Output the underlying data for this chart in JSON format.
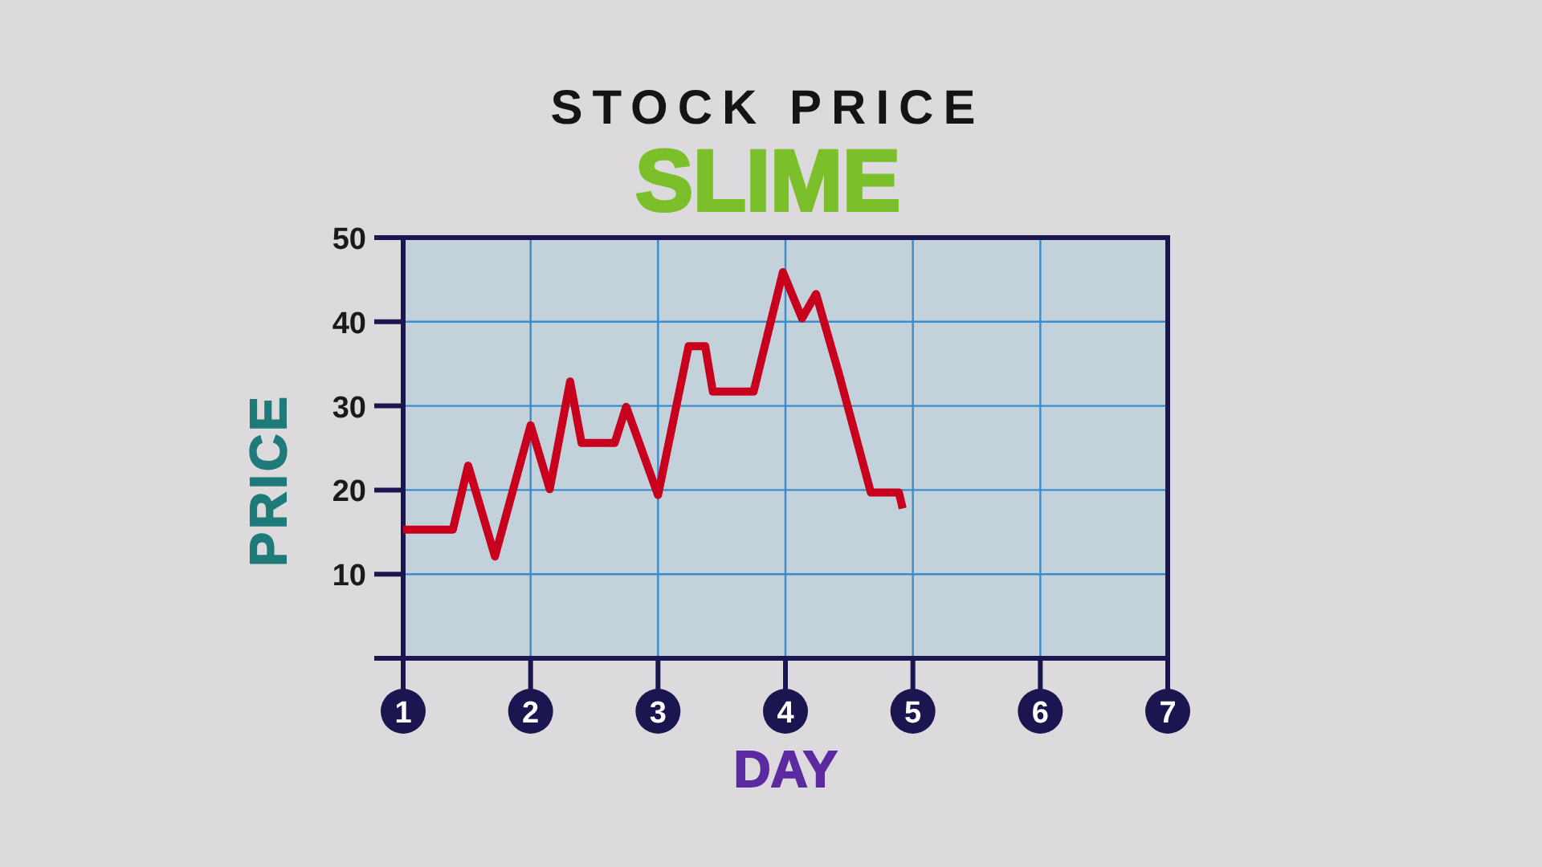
{
  "chart_data": {
    "type": "line",
    "title": "STOCK PRICE",
    "subtitle": "SLIME",
    "xlabel": "DAY",
    "ylabel": "PRICE",
    "x": [
      1,
      1.39,
      1.51,
      1.72,
      2,
      2.15,
      2.31,
      2.4,
      2.66,
      2.75,
      3,
      3.24,
      3.37,
      3.43,
      3.75,
      3.98,
      4.13,
      4.24,
      4.42,
      4.67,
      4.89,
      4.92
    ],
    "series": [
      {
        "color": "#c8001e",
        "values": [
          15.3,
          15.3,
          22.9,
          12.1,
          27.7,
          20.1,
          32.9,
          25.6,
          25.6,
          29.9,
          19.4,
          37.1,
          37.1,
          31.7,
          31.7,
          45.9,
          40.4,
          43.3,
          33.8,
          19.7,
          19.7,
          17.8
        ]
      }
    ],
    "xlim": [
      1,
      7
    ],
    "xticks": [
      1,
      2,
      3,
      4,
      5,
      6,
      7
    ],
    "ylim": [
      0,
      50
    ],
    "yticks": [
      10,
      20,
      30,
      40,
      50
    ],
    "grid": true,
    "marker": "none",
    "line_style": "solid"
  }
}
